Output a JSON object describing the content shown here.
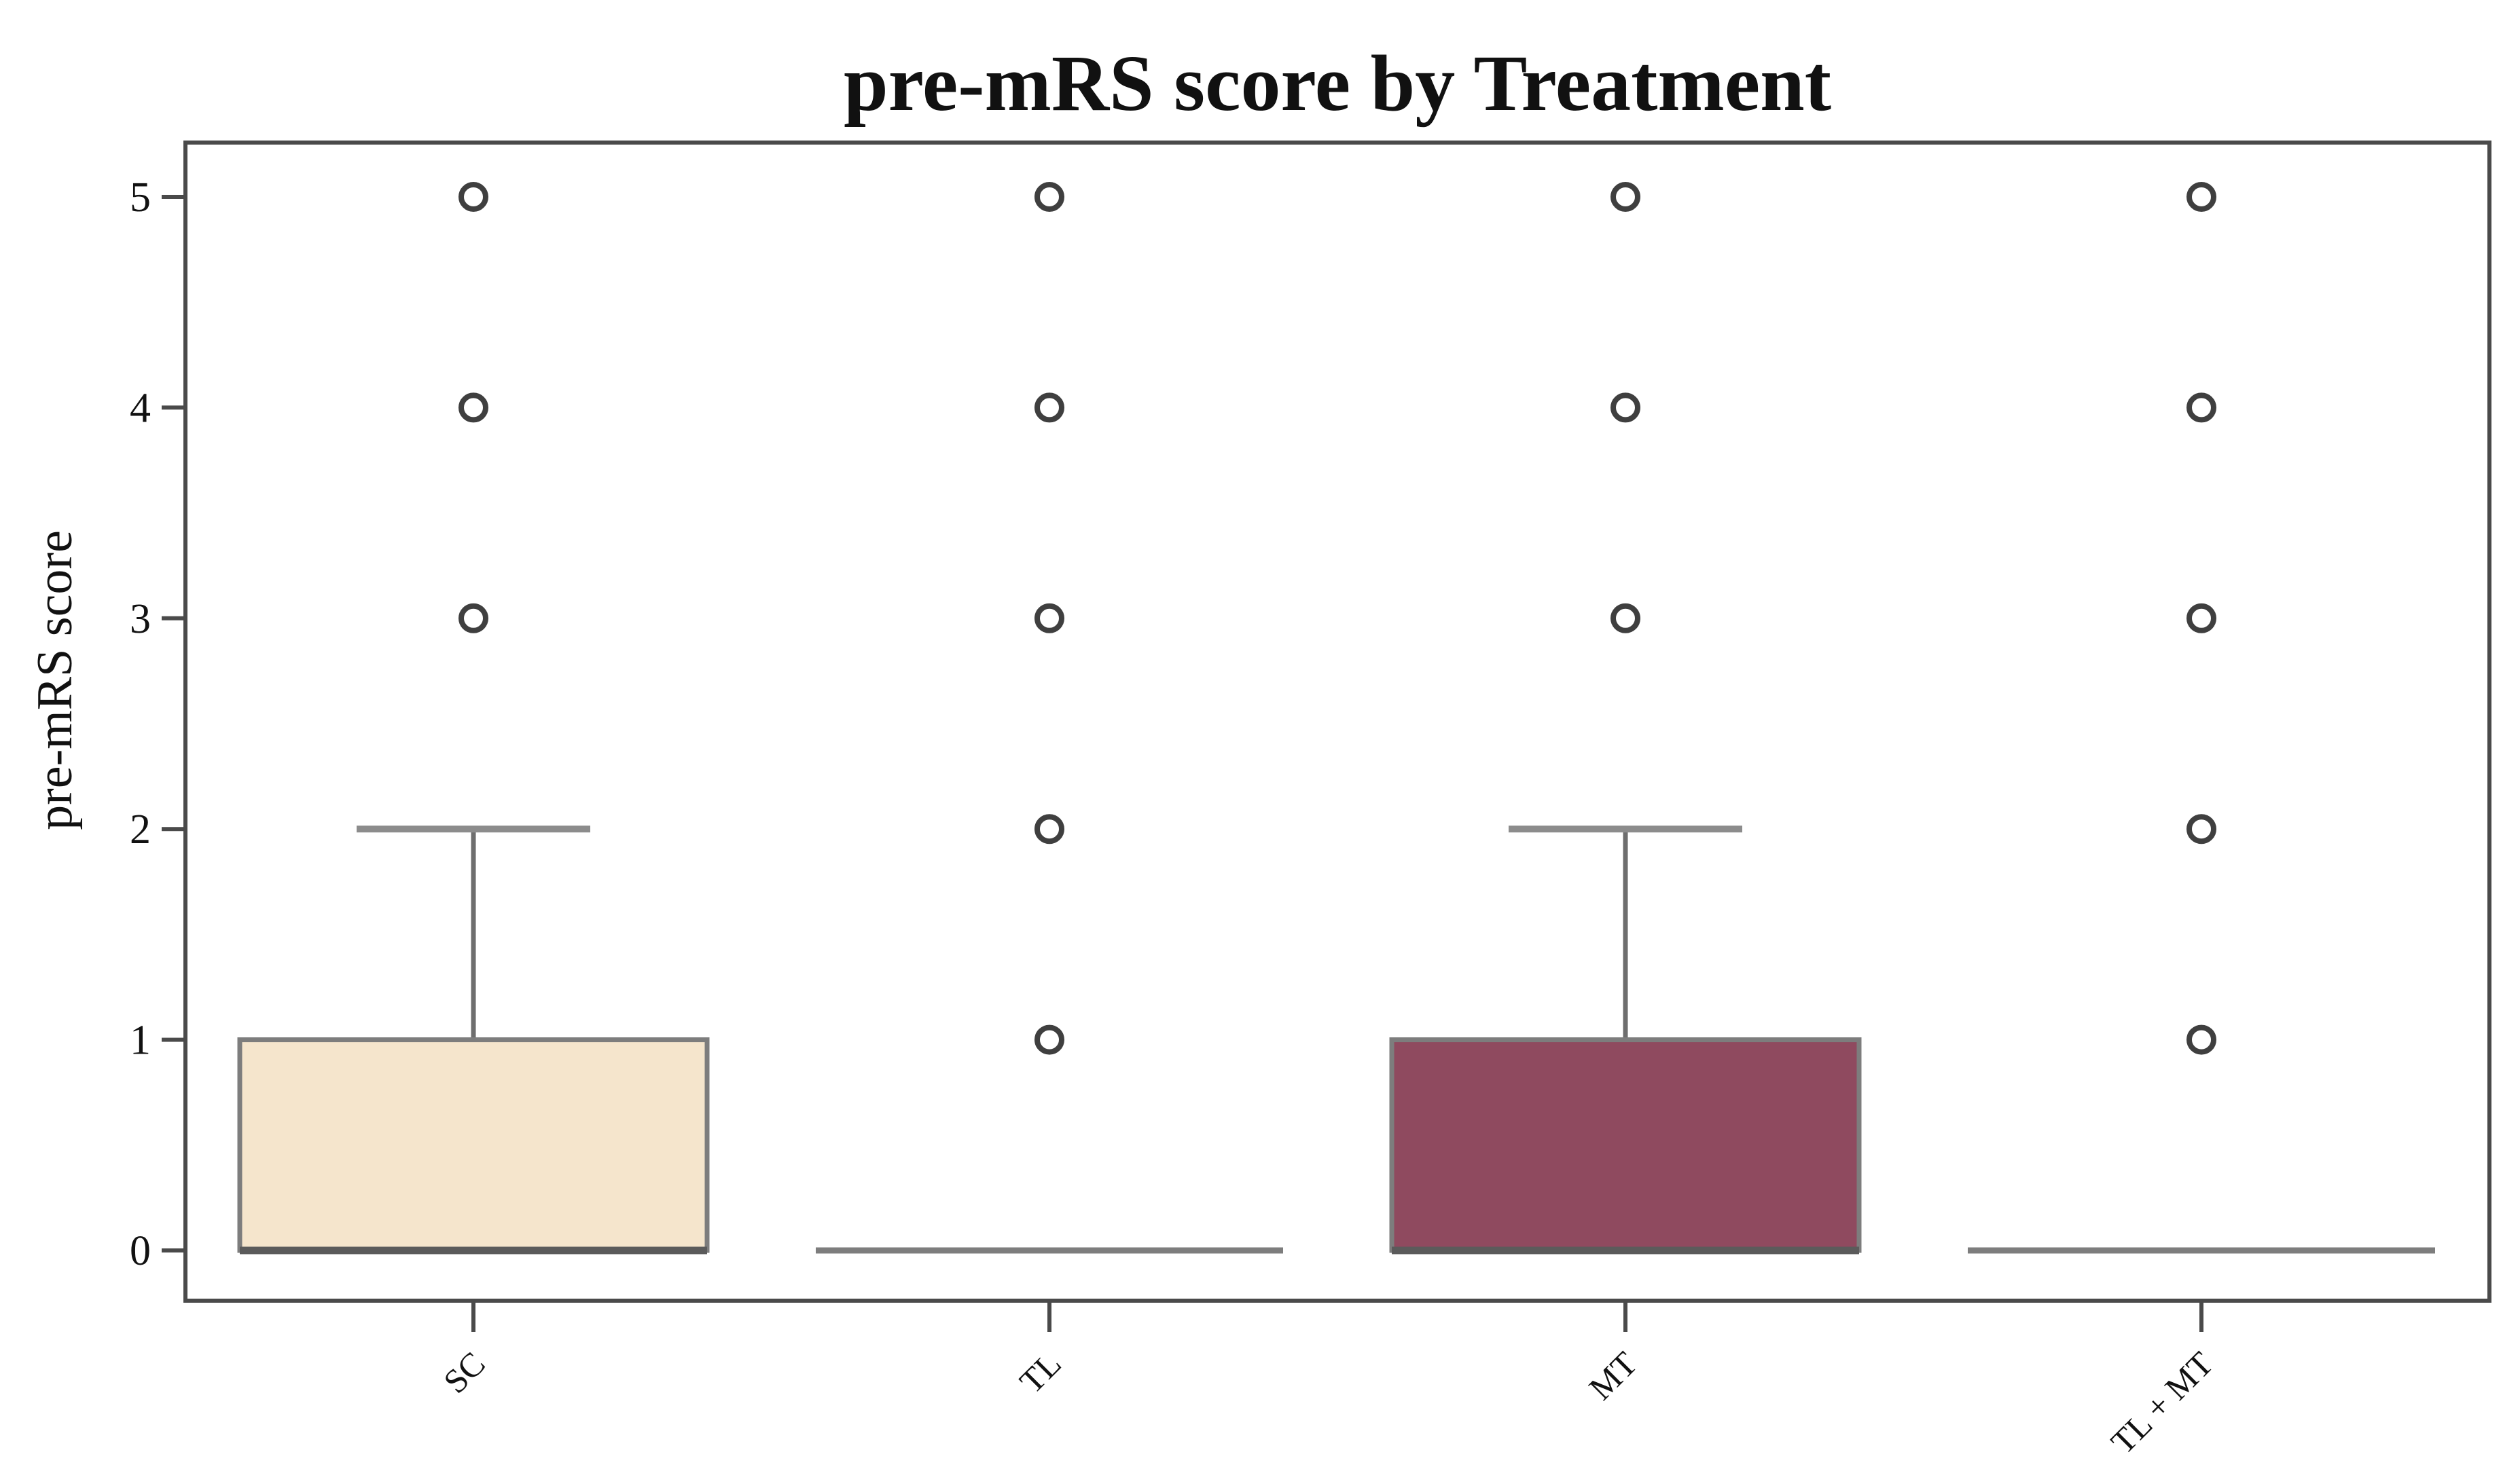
{
  "figure": {
    "title": "pre-mRS score by Treatment",
    "y_axis_label": "pre-mRS score"
  },
  "chart_data": {
    "type": "box",
    "title": "pre-mRS score by Treatment",
    "xlabel": "",
    "ylabel": "pre-mRS score",
    "categories": [
      "SC",
      "TL",
      "MT",
      "TL + MT"
    ],
    "ytick_labels": [
      "0",
      "1",
      "2",
      "3",
      "4",
      "5"
    ],
    "yticks": [
      0,
      1,
      2,
      3,
      4,
      5
    ],
    "ylim": [
      -0.25,
      5.25
    ],
    "grid": false,
    "legend": false,
    "boxes": [
      {
        "category": "SC",
        "q1": 0,
        "median": 0,
        "q3": 1,
        "whisker_low": 0,
        "whisker_high": 2,
        "outliers": [
          3,
          4,
          5
        ],
        "fill_color": "#f5e5cc"
      },
      {
        "category": "TL",
        "q1": 0,
        "median": 0,
        "q3": 0,
        "whisker_low": 0,
        "whisker_high": 0,
        "outliers": [
          1,
          2,
          3,
          4,
          5
        ],
        "fill_color": "none"
      },
      {
        "category": "MT",
        "q1": 0,
        "median": 0,
        "q3": 1,
        "whisker_low": 0,
        "whisker_high": 2,
        "outliers": [
          3,
          4,
          5
        ],
        "fill_color": "#8f4a5f"
      },
      {
        "category": "TL + MT",
        "q1": 0,
        "median": 0,
        "q3": 0,
        "whisker_low": 0,
        "whisker_high": 0,
        "outliers": [
          1,
          2,
          3,
          4,
          5
        ],
        "fill_color": "none"
      }
    ],
    "colors": {
      "background": "#ffffff",
      "frame": "#4a4a4a",
      "box_edge": "#7d7d7d",
      "median": "#5b5b5b",
      "whisker": "#6e6e6e",
      "cap": "#8c8c8c",
      "outlier_edge": "#3f3f3f",
      "outlier_fill": "#ffffff",
      "text": "#111111"
    }
  }
}
